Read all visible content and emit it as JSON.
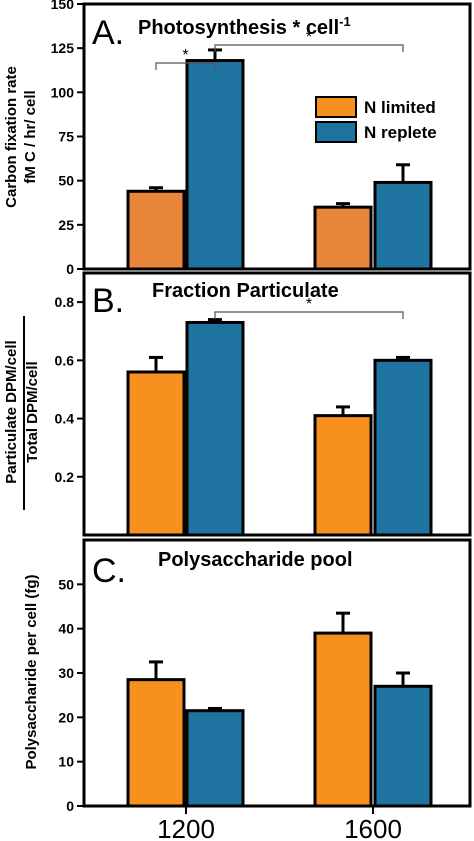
{
  "colors": {
    "n_limited": "#F7901E",
    "n_replete": "#1E73A0",
    "n_limited_dark": "#E8853A"
  },
  "legend": {
    "items": [
      "N limited",
      "N replete"
    ]
  },
  "x_categories": [
    "1200",
    "1600"
  ],
  "chart_data": [
    {
      "type": "bar",
      "panel_letter": "A.",
      "title_main": "Photosynthesis * cell",
      "title_sup": "-1",
      "ylabel_line1": "Carbon fixation rate",
      "ylabel_line2": "fM C / hr/ cell",
      "ylim": [
        0,
        150
      ],
      "yticks": [
        "0",
        "25",
        "50",
        "75",
        "100",
        "125",
        "150"
      ],
      "categories": [
        "1200",
        "1600"
      ],
      "series": [
        {
          "name": "N limited",
          "values": [
            44,
            35
          ],
          "errors": [
            2,
            2
          ]
        },
        {
          "name": "N replete",
          "values": [
            118,
            49
          ],
          "errors": [
            6,
            10
          ]
        }
      ],
      "significance": [
        {
          "from": [
            0,
            0
          ],
          "to": [
            0,
            1
          ],
          "label": "*"
        },
        {
          "from": [
            0,
            1
          ],
          "to": [
            1,
            1
          ],
          "label": "*"
        }
      ]
    },
    {
      "type": "bar",
      "panel_letter": "B.",
      "title_main": "Fraction Particulate",
      "ylabel_line1": "Particulate DPM/cell",
      "ylabel_line2": "Total DPM/cell",
      "ylim": [
        0,
        0.9
      ],
      "yticks": [
        "0.2",
        "0.4",
        "0.6",
        "0.8"
      ],
      "categories": [
        "1200",
        "1600"
      ],
      "series": [
        {
          "name": "N limited",
          "values": [
            0.56,
            0.41
          ],
          "errors": [
            0.05,
            0.03
          ]
        },
        {
          "name": "N replete",
          "values": [
            0.73,
            0.6
          ],
          "errors": [
            0.01,
            0.01
          ]
        }
      ],
      "significance": [
        {
          "from": [
            0,
            1
          ],
          "to": [
            1,
            1
          ],
          "label": "*"
        }
      ]
    },
    {
      "type": "bar",
      "panel_letter": "C.",
      "title_main": "Polysaccharide pool",
      "ylabel_line1": "Polysaccharide per cell (fg)",
      "ylim": [
        0,
        60
      ],
      "yticks": [
        "0",
        "10",
        "20",
        "30",
        "40",
        "50"
      ],
      "categories": [
        "1200",
        "1600"
      ],
      "series": [
        {
          "name": "N limited",
          "values": [
            28.5,
            39
          ],
          "errors": [
            4,
            4.5
          ]
        },
        {
          "name": "N replete",
          "values": [
            21.5,
            27
          ],
          "errors": [
            0.5,
            3
          ]
        }
      ],
      "significance": []
    }
  ]
}
